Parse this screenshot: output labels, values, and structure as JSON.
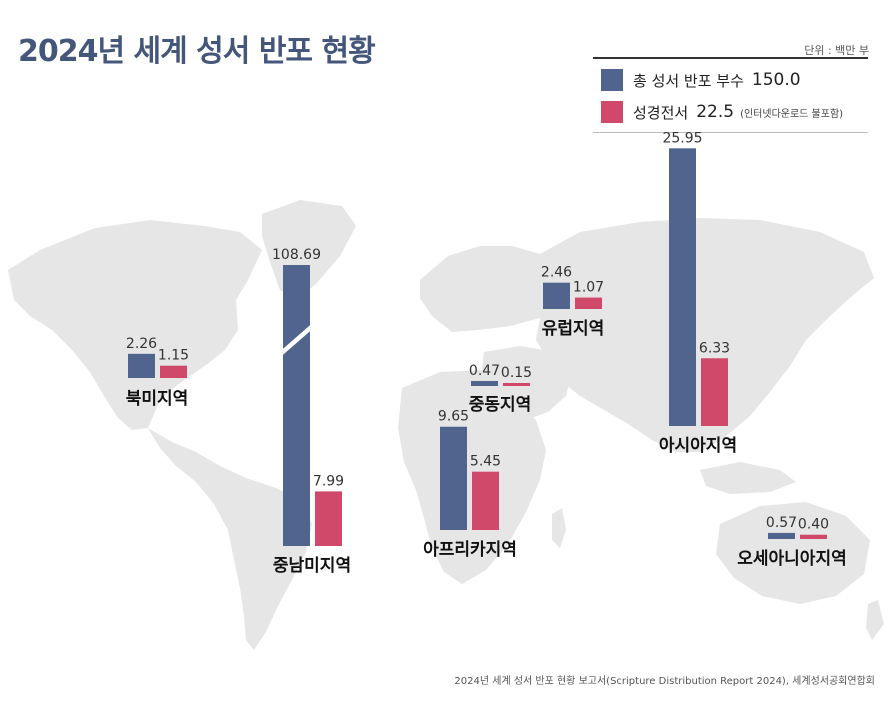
{
  "title": "2024년 세계 성서 반포 현황",
  "unit": "단위 : 백만 부",
  "legend": {
    "total": {
      "label": "총 성서 반포 부수",
      "value": "150.0"
    },
    "full": {
      "label": "성경전서",
      "value": "22.5",
      "note": "(인터넷다운로드 불포함)"
    }
  },
  "source": "2024년 세계 성서 반포 현황 보고서(Scripture Distribution Report 2024), 세계성서공회연합회",
  "colors": {
    "total": "#51648e",
    "full": "#d0496a",
    "map": "#e6e6e6"
  },
  "chart_data": {
    "type": "bar",
    "title": "2024년 세계 성서 반포 현황",
    "unit": "단위 : 백만 부",
    "series": [
      {
        "name": "총 성서 반포 부수",
        "values": [
          2.26,
          108.69,
          0.47,
          2.46,
          9.65,
          25.95,
          0.57
        ]
      },
      {
        "name": "성경전서",
        "values": [
          1.15,
          7.99,
          0.15,
          1.07,
          5.45,
          6.33,
          0.4
        ]
      }
    ],
    "categories": [
      "북미지역",
      "중남미지역",
      "중동지역",
      "유럽지역",
      "아프리카지역",
      "아시아지역",
      "오세아니아지역"
    ],
    "value_labels": [
      [
        "2.26",
        "1.15"
      ],
      [
        "108.69",
        "7.99"
      ],
      [
        "0.47",
        "0.15"
      ],
      [
        "2.46",
        "1.07"
      ],
      [
        "9.65",
        "5.45"
      ],
      [
        "25.95",
        "6.33"
      ],
      [
        "0.57",
        "0.40"
      ]
    ],
    "axis_break": "중남미지역 total bar truncated",
    "legend_position": "top-right"
  }
}
